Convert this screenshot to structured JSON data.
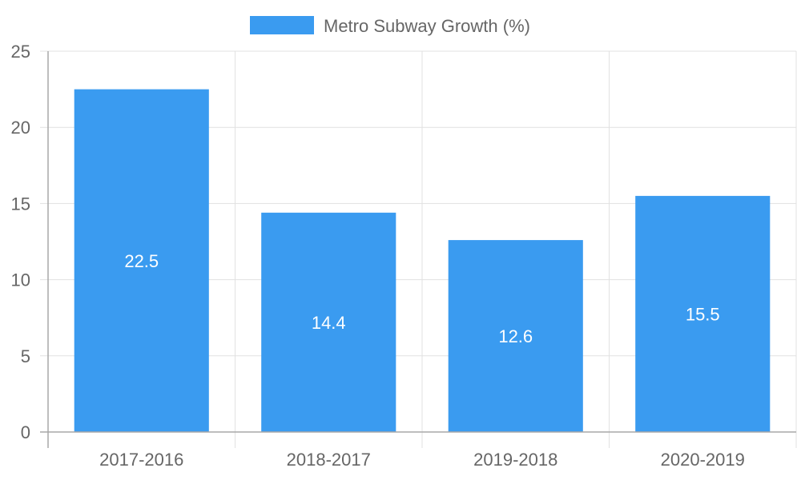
{
  "chart_data": {
    "type": "bar",
    "categories": [
      "2017-2016",
      "2018-2017",
      "2019-2018",
      "2020-2019"
    ],
    "series": [
      {
        "name": "Metro Subway Growth (%)",
        "values": [
          22.5,
          14.4,
          12.6,
          15.5
        ],
        "color": "#3a9bf0"
      }
    ],
    "ylim": [
      0,
      25
    ],
    "yticks": [
      0,
      5,
      10,
      15,
      20,
      25
    ],
    "grid": true,
    "legend": "top-center",
    "data_labels": "inside-center"
  },
  "colors": {
    "bar": "#3a9bf0",
    "grid": "#e1e1e1",
    "axis": "#a8a8a8",
    "text": "#666666",
    "label": "#ffffff"
  }
}
